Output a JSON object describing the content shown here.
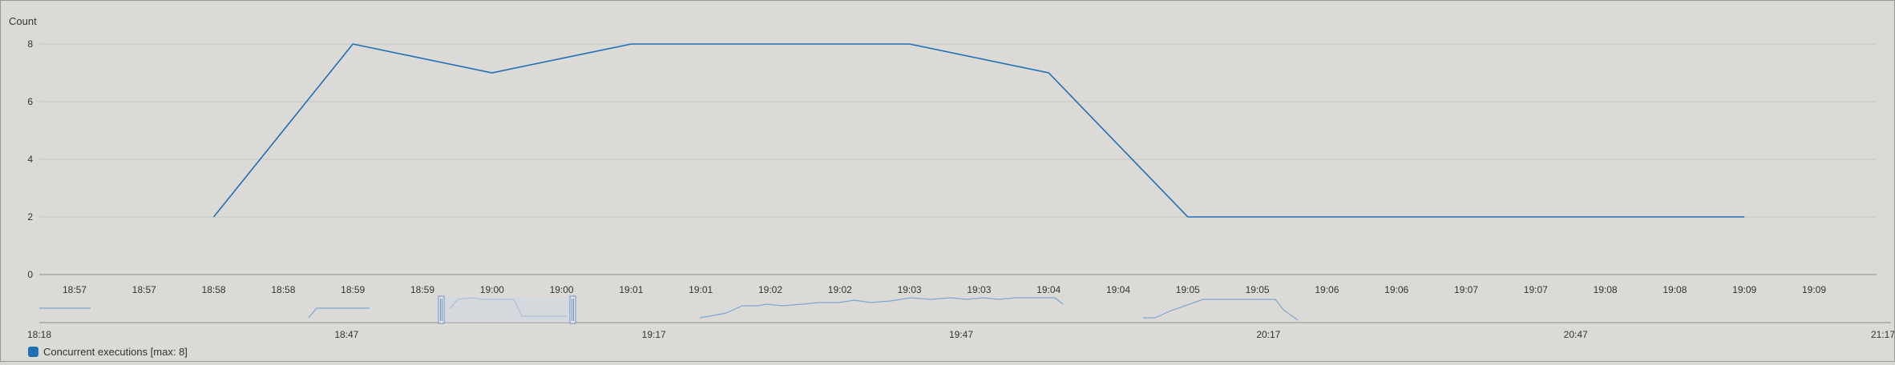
{
  "colors": {
    "series": "#1f6fb5",
    "grid": "#c8c6c2",
    "axis": "#8e8c88",
    "mini_series": "#7ea6cf",
    "brush_fill": "#cfd7e2",
    "brush_border": "#6f90b8"
  },
  "chart_data": {
    "type": "line",
    "title": "",
    "xlabel": "",
    "ylabel": "Count",
    "ylim": [
      0,
      9
    ],
    "yticks": [
      0,
      2,
      4,
      6,
      8
    ],
    "grid": true,
    "legend_position": "bottom-left",
    "x_tick_labels": [
      "18:57",
      "18:57",
      "18:58",
      "18:58",
      "18:59",
      "18:59",
      "19:00",
      "19:00",
      "19:01",
      "19:01",
      "19:02",
      "19:02",
      "19:03",
      "19:03",
      "19:04",
      "19:04",
      "19:05",
      "19:05",
      "19:06",
      "19:06",
      "19:07",
      "19:07",
      "19:08",
      "19:08",
      "19:09",
      "19:09"
    ],
    "series": [
      {
        "name": "Concurrent executions [max: 8]",
        "x_index": [
          2,
          4,
          6,
          8,
          12,
          14,
          16,
          24
        ],
        "values": [
          2,
          8,
          7,
          8,
          8,
          7,
          2,
          2
        ]
      }
    ],
    "navigator": {
      "x_tick_labels": [
        "18:18",
        "18:47",
        "19:17",
        "19:47",
        "20:17",
        "20:47",
        "21:17"
      ],
      "selected_range": [
        "18:57",
        "19:09"
      ]
    }
  }
}
